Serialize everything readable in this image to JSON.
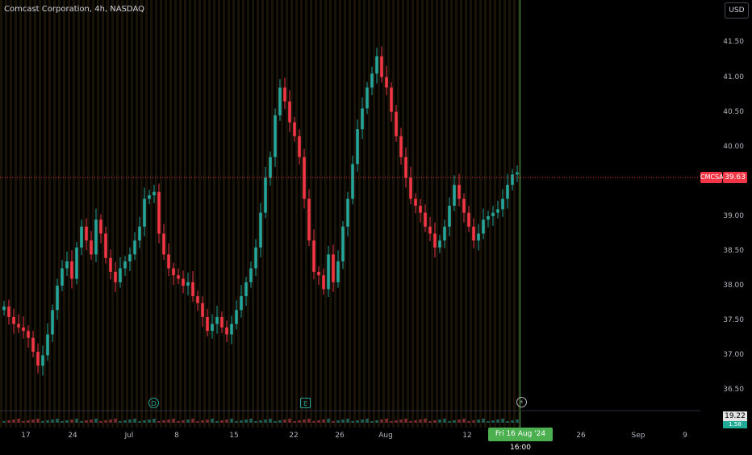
{
  "header": {
    "symbol_title": "Comcast Corporation, 4h, NASDAQ",
    "currency": "USD"
  },
  "chart_data": {
    "type": "candlestick",
    "symbol": "CMCSA",
    "last_price": "39.63",
    "y_ticks": [
      "41.50",
      "41.00",
      "40.50",
      "40.00",
      "39.50",
      "39.00",
      "38.50",
      "38.00",
      "37.50",
      "37.00",
      "36.50"
    ],
    "x_ticks": [
      "17",
      "24",
      "Jul",
      "8",
      "15",
      "22",
      "26",
      "Aug",
      "12",
      "26",
      "Sep",
      "9"
    ],
    "crosshair_date": "Fri 16 Aug '24  16:00",
    "volume_labels": [
      "19.22",
      "1.58"
    ],
    "events": [
      {
        "label": "D",
        "type": "dividend"
      },
      {
        "label": "E",
        "type": "earnings"
      }
    ],
    "colors": {
      "up": "#26a69a",
      "down": "#f23645",
      "crosshair": "#4caf50"
    },
    "ylim": [
      36.25,
      41.9
    ],
    "closes": [
      37.7,
      37.55,
      37.45,
      37.4,
      37.35,
      37.25,
      37.05,
      36.85,
      37.0,
      37.3,
      37.65,
      38.0,
      38.25,
      38.35,
      38.1,
      38.55,
      38.85,
      38.65,
      38.45,
      38.95,
      38.75,
      38.4,
      38.2,
      38.05,
      38.25,
      38.35,
      38.45,
      38.65,
      38.85,
      39.25,
      39.3,
      39.35,
      38.75,
      38.45,
      38.25,
      38.15,
      38.1,
      38.0,
      38.05,
      37.85,
      37.75,
      37.55,
      37.35,
      37.45,
      37.55,
      37.4,
      37.3,
      37.45,
      37.65,
      37.85,
      38.05,
      38.25,
      38.55,
      39.05,
      39.55,
      39.85,
      40.45,
      40.85,
      40.65,
      40.35,
      40.15,
      39.85,
      39.25,
      38.65,
      38.2,
      38.15,
      37.95,
      38.45,
      38.05,
      38.35,
      38.85,
      39.25,
      39.75,
      40.25,
      40.55,
      40.85,
      41.05,
      41.3,
      41.0,
      40.85,
      40.5,
      40.15,
      39.85,
      39.55,
      39.25,
      39.15,
      39.05,
      38.85,
      38.75,
      38.55,
      38.65,
      38.85,
      39.15,
      39.45,
      39.25,
      39.05,
      38.85,
      38.65,
      38.75,
      38.95,
      39.0,
      39.05,
      39.1,
      39.25,
      39.45,
      39.6,
      39.63
    ]
  }
}
